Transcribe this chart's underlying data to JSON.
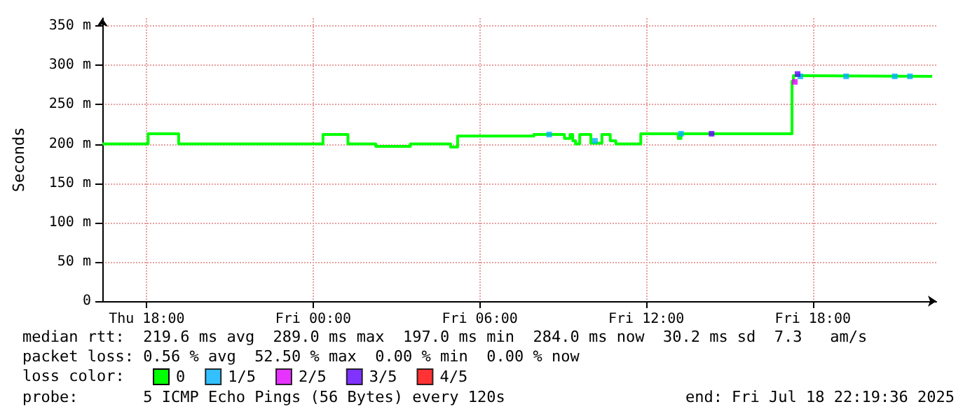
{
  "chart_data": {
    "type": "step",
    "ylabel": "Seconds",
    "legend_title": "loss color:",
    "annotations": [
      "median rtt:  219.6 ms avg  289.0 ms max  197.0 ms min  284.0 ms now  30.2 ms sd  7.3   am/s",
      "packet loss: 0.56 % avg  52.50 % max  0.00 % min  0.00 % now",
      "probe:       5 ICMP Echo Pings (56 Bytes) every 120s",
      "end: Fri Jul 18 22:19:36 2025"
    ],
    "xlim": [
      "2025-07-17T16:24",
      "2025-07-18T22:27"
    ],
    "xticks": [
      {
        "value": "2025-07-17T18:00",
        "label": "Thu 18:00"
      },
      {
        "value": "2025-07-18T00:00",
        "label": "Fri 00:00"
      },
      {
        "value": "2025-07-18T06:00",
        "label": "Fri 06:00"
      },
      {
        "value": "2025-07-18T12:00",
        "label": "Fri 12:00"
      },
      {
        "value": "2025-07-18T18:00",
        "label": "Fri 18:00"
      }
    ],
    "ylim": [
      0,
      360
    ],
    "yticks": [
      0,
      {
        "value": 50,
        "label": "50 m"
      },
      {
        "value": 100,
        "label": "100 m"
      },
      {
        "value": 150,
        "label": "150 m"
      },
      {
        "value": 200,
        "label": "200 m"
      },
      {
        "value": 250,
        "label": "250 m"
      },
      {
        "value": 300,
        "label": "300 m"
      },
      {
        "value": 350,
        "label": "350 m"
      }
    ],
    "grid": true,
    "marker": "none",
    "legend": "bottom left",
    "series": [
      {
        "name": "0",
        "color": "#00ff00",
        "x": [
          "2025-07-17T16:24",
          "2025-07-17T18:03",
          "2025-07-17T19:09",
          "2025-07-18T00:21",
          "2025-07-18T01:15",
          "2025-07-18T02:15",
          "2025-07-18T03:30",
          "2025-07-18T04:57",
          "2025-07-18T05:12",
          "2025-07-18T07:57",
          "2025-07-18T09:03",
          "2025-07-18T09:15",
          "2025-07-18T09:21",
          "2025-07-18T09:27",
          "2025-07-18T09:36",
          "2025-07-18T10:00",
          "2025-07-18T10:24",
          "2025-07-18T10:42",
          "2025-07-18T10:54",
          "2025-07-18T11:48",
          "2025-07-18T13:09",
          "2025-07-18T13:15",
          "2025-07-18T17:15",
          "2025-07-18T17:18",
          "2025-07-18T17:27",
          "2025-07-18T22:18"
        ],
        "values": [
          200,
          213,
          200,
          212,
          200,
          197,
          200,
          196,
          210,
          212,
          207,
          212,
          204,
          200,
          212,
          201,
          212,
          204,
          200,
          213,
          207,
          213,
          280,
          287,
          286,
          286
        ]
      },
      {
        "name": "1/5",
        "color": "#00b0ff",
        "type": "scatter",
        "marker": "square",
        "x": [
          "2025-07-18T08:30",
          "2025-07-18T10:09",
          "2025-07-18T13:15",
          "2025-07-18T17:33",
          "2025-07-18T19:12",
          "2025-07-18T20:57",
          "2025-07-18T21:30"
        ],
        "values": [
          212,
          204,
          213,
          286,
          286,
          286,
          286
        ]
      },
      {
        "name": "2/5",
        "color": "#e000ff",
        "type": "scatter",
        "marker": "square",
        "x": [
          "2025-07-18T17:21"
        ],
        "values": [
          279
        ]
      },
      {
        "name": "3/5",
        "color": "#6000ff",
        "type": "scatter",
        "marker": "square",
        "x": [
          "2025-07-18T14:21",
          "2025-07-18T17:27"
        ],
        "values": [
          213,
          289
        ]
      },
      {
        "name": "4/5",
        "color": "#ff0000",
        "type": "scatter",
        "marker": "square"
      }
    ]
  }
}
